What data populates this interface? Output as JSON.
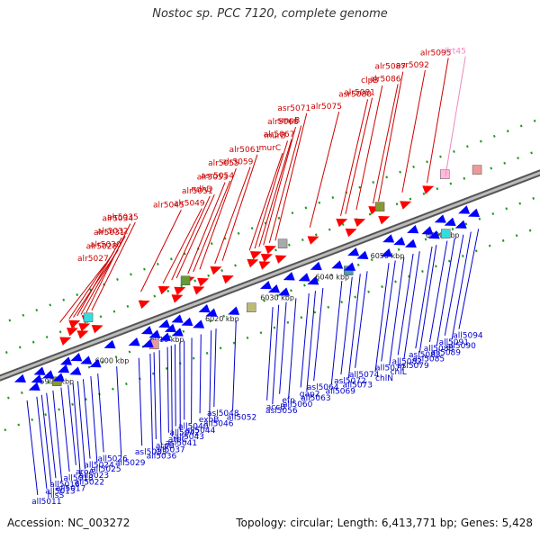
{
  "title": "Nostoc sp. PCC 7120, complete genome",
  "accession": "Accession: NC_003272",
  "summary": "Topology: circular; Length: 6,413,771 bp; Genes: 5,428",
  "colors": {
    "forward_label": "#cc0000",
    "reverse_label": "#0000cc",
    "rna_label": "#ee88bb",
    "forward_arrow": "#ff0000",
    "reverse_arrow": "#0000ff",
    "backbone": "#888888",
    "tick_dot": "#229922"
  },
  "scale_labels": [
    {
      "text": "5990 kbp",
      "pos": 0.061
    },
    {
      "text": "6000 kbp",
      "pos": 0.163
    },
    {
      "text": "6010 kbp",
      "pos": 0.265
    },
    {
      "text": "6020 kbp",
      "pos": 0.367
    },
    {
      "text": "6030 kbp",
      "pos": 0.469
    },
    {
      "text": "6040 kbp",
      "pos": 0.571
    },
    {
      "text": "6050 kbp",
      "pos": 0.673
    },
    {
      "text": "6060 kbp",
      "pos": 0.775
    }
  ],
  "forward_genes": [
    {
      "name": "alr5027",
      "pos": 0.131,
      "type": "cds"
    },
    {
      "name": "alr5028",
      "pos": 0.148,
      "type": "cds"
    },
    {
      "name": "alr5030",
      "pos": 0.156,
      "type": "cds"
    },
    {
      "name": "alr5031",
      "pos": 0.163,
      "type": "cds"
    },
    {
      "name": "alr5032",
      "pos": 0.17,
      "type": "cds"
    },
    {
      "name": "alr5034",
      "pos": 0.18,
      "type": "cds"
    },
    {
      "name": "alr5035",
      "pos": 0.19,
      "type": "cds"
    },
    {
      "name": "alr5045",
      "pos": 0.281,
      "type": "cds"
    },
    {
      "name": "alr5049",
      "pos": 0.322,
      "type": "cds"
    },
    {
      "name": "alr5051",
      "pos": 0.338,
      "type": "cds"
    },
    {
      "name": "ndhD",
      "pos": 0.347,
      "type": "cds"
    },
    {
      "name": "alr5053",
      "pos": 0.368,
      "type": "cds"
    },
    {
      "name": "asr5054",
      "pos": 0.378,
      "type": "cds"
    },
    {
      "name": "alr5055",
      "pos": 0.39,
      "type": "cds"
    },
    {
      "name": "alr5059",
      "pos": 0.418,
      "type": "cds"
    },
    {
      "name": "alr5061",
      "pos": 0.432,
      "type": "cds"
    },
    {
      "name": "murC",
      "pos": 0.482,
      "type": "cds"
    },
    {
      "name": "murB",
      "pos": 0.492,
      "type": "cds"
    },
    {
      "name": "alr5067",
      "pos": 0.5,
      "type": "cds"
    },
    {
      "name": "alr5068",
      "pos": 0.508,
      "type": "cds"
    },
    {
      "name": "smpB",
      "pos": 0.519,
      "type": "cds"
    },
    {
      "name": "asr5071",
      "pos": 0.53,
      "type": "cds"
    },
    {
      "name": "alr5075",
      "pos": 0.594,
      "type": "cds"
    },
    {
      "name": "asr5080",
      "pos": 0.651,
      "type": "cds"
    },
    {
      "name": "alr5081",
      "pos": 0.66,
      "type": "cds"
    },
    {
      "name": "clpB",
      "pos": 0.68,
      "type": "cds"
    },
    {
      "name": "alr5086",
      "pos": 0.711,
      "type": "cds"
    },
    {
      "name": "alr5087",
      "pos": 0.721,
      "type": "cds"
    },
    {
      "name": "asr5092",
      "pos": 0.765,
      "type": "cds"
    },
    {
      "name": "alr5095",
      "pos": 0.811,
      "type": "cds"
    },
    {
      "name": "allrt45",
      "pos": 0.845,
      "type": "rna"
    }
  ],
  "reverse_genes": [
    {
      "name": "all5011",
      "pos": 0.03
    },
    {
      "name": "all5013",
      "pos": 0.057
    },
    {
      "name": "hisS",
      "pos": 0.048
    },
    {
      "name": "all5016",
      "pos": 0.066
    },
    {
      "name": "all5017",
      "pos": 0.078
    },
    {
      "name": "all5018",
      "pos": 0.093
    },
    {
      "name": "all5022",
      "pos": 0.115
    },
    {
      "name": "aroA",
      "pos": 0.106
    },
    {
      "name": "all5023",
      "pos": 0.124
    },
    {
      "name": "all5024",
      "pos": 0.134
    },
    {
      "name": "all5025",
      "pos": 0.148
    },
    {
      "name": "all5026",
      "pos": 0.161
    },
    {
      "name": "all5029",
      "pos": 0.196
    },
    {
      "name": "asl5033",
      "pos": 0.237
    },
    {
      "name": "all5036",
      "pos": 0.258
    },
    {
      "name": "atpB",
      "pos": 0.265
    },
    {
      "name": "all5037",
      "pos": 0.275
    },
    {
      "name": "atpC",
      "pos": 0.29
    },
    {
      "name": "asl5041",
      "pos": 0.297
    },
    {
      "name": "all5042",
      "pos": 0.304
    },
    {
      "name": "all5043",
      "pos": 0.313
    },
    {
      "name": "all5040",
      "pos": 0.321
    },
    {
      "name": "all5044",
      "pos": 0.335
    },
    {
      "name": "exbB",
      "pos": 0.352
    },
    {
      "name": "all5046",
      "pos": 0.371
    },
    {
      "name": "asl5048",
      "pos": 0.38
    },
    {
      "name": "all5052",
      "pos": 0.417
    },
    {
      "name": "accB",
      "pos": 0.485
    },
    {
      "name": "asl5056",
      "pos": 0.496
    },
    {
      "name": "efp",
      "pos": 0.51
    },
    {
      "name": "all5060",
      "pos": 0.528
    },
    {
      "name": "gap2",
      "pos": 0.552
    },
    {
      "name": "all5063",
      "pos": 0.564
    },
    {
      "name": "asl5064",
      "pos": 0.578
    },
    {
      "name": "all5069",
      "pos": 0.613
    },
    {
      "name": "asl5072",
      "pos": 0.632
    },
    {
      "name": "all5073",
      "pos": 0.647
    },
    {
      "name": "all5074",
      "pos": 0.66
    },
    {
      "name": "chlN",
      "pos": 0.7
    },
    {
      "name": "all5077",
      "pos": 0.712
    },
    {
      "name": "chlL",
      "pos": 0.728
    },
    {
      "name": "all5082",
      "pos": 0.745
    },
    {
      "name": "asl5079",
      "pos": 0.757
    },
    {
      "name": "asl5083",
      "pos": 0.78
    },
    {
      "name": "asl5085",
      "pos": 0.788
    },
    {
      "name": "all5088",
      "pos": 0.808
    },
    {
      "name": "all5089",
      "pos": 0.822
    },
    {
      "name": "all5091",
      "pos": 0.838
    },
    {
      "name": "all5090",
      "pos": 0.852
    },
    {
      "name": "all5094",
      "pos": 0.866
    }
  ]
}
